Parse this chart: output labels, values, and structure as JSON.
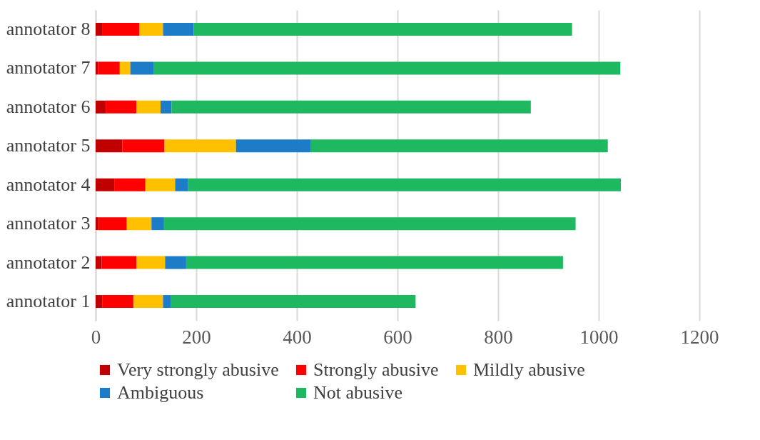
{
  "chart_data": {
    "type": "bar",
    "orientation": "horizontal",
    "stacked": true,
    "categories": [
      "annotator 8",
      "annotator 7",
      "annotator 6",
      "annotator 5",
      "annotator 4",
      "annotator 3",
      "annotator 2",
      "annotator 1"
    ],
    "series": [
      {
        "name": "Very strongly abusive",
        "color": "#c00000",
        "values": [
          14,
          5,
          20,
          53,
          37,
          6,
          12,
          13
        ]
      },
      {
        "name": "Strongly abusive",
        "color": "#ff0000",
        "values": [
          73,
          43,
          61,
          84,
          62,
          56,
          69,
          62
        ]
      },
      {
        "name": "Mildly abusive",
        "color": "#ffc000",
        "values": [
          47,
          21,
          48,
          142,
          59,
          49,
          57,
          59
        ]
      },
      {
        "name": "Ambiguous",
        "color": "#1c7cc8",
        "values": [
          61,
          46,
          22,
          148,
          26,
          25,
          42,
          15
        ]
      },
      {
        "name": "Not abusive",
        "color": "#1db85f",
        "values": [
          752,
          928,
          714,
          591,
          860,
          818,
          749,
          487
        ]
      }
    ],
    "xlim": [
      0,
      1200
    ],
    "xticks": [
      0,
      200,
      400,
      600,
      800,
      1000,
      1200
    ],
    "grid": "x",
    "legend": "bottom"
  }
}
